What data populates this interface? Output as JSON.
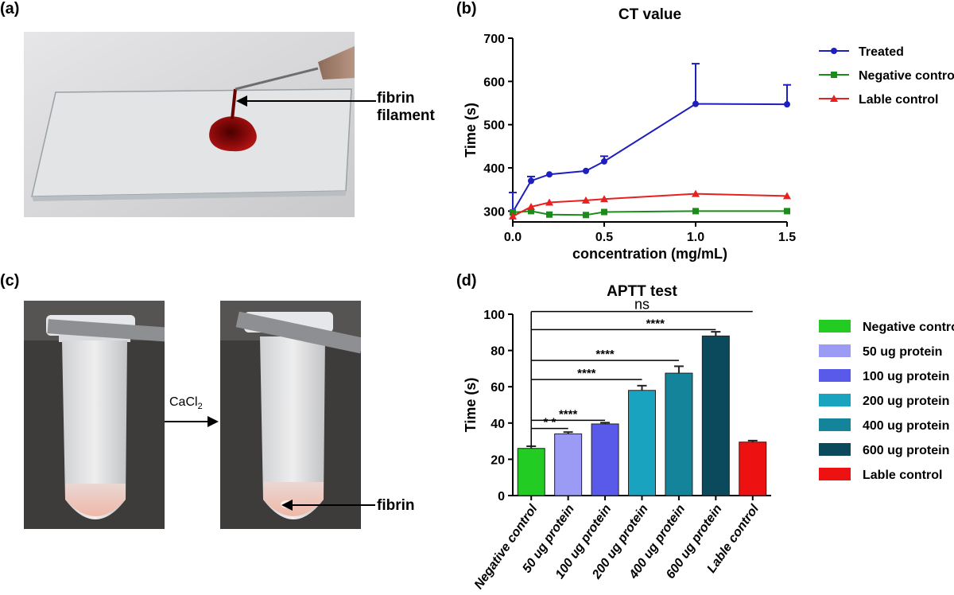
{
  "panels": {
    "a": {
      "label": "(a)",
      "annotation_line1": "fibrin",
      "annotation_line2": "filament"
    },
    "b": {
      "label": "(b)"
    },
    "c": {
      "label": "(c)",
      "reagent_prefix": "CaCl",
      "reagent_subscript": "2",
      "annotation": "fibrin"
    },
    "d": {
      "label": "(d)"
    }
  },
  "chart_data": [
    {
      "type": "line",
      "title": "CT value",
      "xlabel": "concentration (mg/mL)",
      "ylabel": "Time (s)",
      "xlim": [
        0,
        1.5
      ],
      "ylim": [
        275,
        700
      ],
      "xticks": [
        0.0,
        0.5,
        1.0,
        1.5
      ],
      "xtick_labels": [
        "0.0",
        "0.5",
        "1.0",
        "1.5"
      ],
      "yticks": [
        300,
        400,
        500,
        600,
        700
      ],
      "ytick_labels": [
        "300",
        "400",
        "500",
        "600",
        "700"
      ],
      "series": [
        {
          "name": "Treated",
          "color": "#1f1fbf",
          "marker": "circle",
          "x": [
            0,
            0.1,
            0.2,
            0.4,
            0.5,
            1.0,
            1.5
          ],
          "y": [
            298,
            370,
            385,
            393,
            415,
            548,
            547
          ],
          "err": [
            45,
            10,
            0,
            0,
            12,
            93,
            45
          ]
        },
        {
          "name": "Negative control",
          "color": "#1a8c1a",
          "marker": "square",
          "x": [
            0,
            0.1,
            0.2,
            0.4,
            0.5,
            1.0,
            1.5
          ],
          "y": [
            297,
            300,
            292,
            291,
            298,
            300,
            300
          ],
          "err": [
            0,
            0,
            0,
            0,
            0,
            0,
            0
          ]
        },
        {
          "name": "Lable control",
          "color": "#e82020",
          "marker": "triangle",
          "x": [
            0,
            0.1,
            0.2,
            0.4,
            0.5,
            1.0,
            1.5
          ],
          "y": [
            288,
            310,
            320,
            325,
            328,
            340,
            335
          ],
          "err": [
            0,
            0,
            0,
            0,
            0,
            0,
            0
          ]
        }
      ],
      "legend": "right"
    },
    {
      "type": "bar",
      "title": "APTT test",
      "xlabel": "",
      "ylabel": "Time (s)",
      "ylim": [
        0,
        100
      ],
      "yticks": [
        0,
        20,
        40,
        60,
        80,
        100
      ],
      "ytick_labels": [
        "0",
        "20",
        "40",
        "60",
        "80",
        "100"
      ],
      "categories": [
        "Negative control",
        "50 ug protein",
        "100 ug protein",
        "200 ug protein",
        "400 ug protein",
        "600 ug protein",
        "Lable control"
      ],
      "values": [
        26,
        34,
        39.5,
        58,
        67.5,
        88,
        29.5
      ],
      "errors": [
        1.2,
        1.0,
        0.7,
        2.6,
        3.8,
        2.3,
        0.8
      ],
      "colors": [
        "#22cc22",
        "#9b9bf5",
        "#5a5aea",
        "#1aa3bf",
        "#14849a",
        "#0b4a5c",
        "#ee1111"
      ],
      "significance": [
        {
          "to": 1,
          "label": "* *",
          "y": 37
        },
        {
          "to": 2,
          "label": "****",
          "y": 41.5
        },
        {
          "to": 3,
          "label": "****",
          "y": 64
        },
        {
          "to": 4,
          "label": "****",
          "y": 74.5
        },
        {
          "to": 5,
          "label": "****",
          "y": 91.5
        },
        {
          "to": 6,
          "label": "ns",
          "y": 101.5
        }
      ],
      "legend": "right"
    }
  ]
}
